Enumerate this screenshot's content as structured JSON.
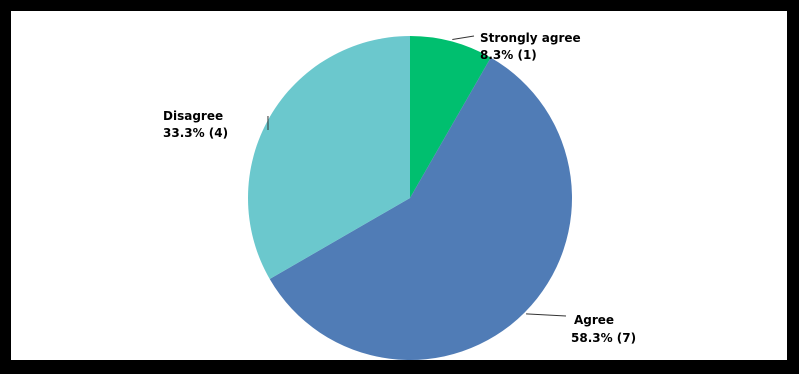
{
  "chart_data": {
    "type": "pie",
    "title": "",
    "slices": [
      {
        "label": "Strongly agree",
        "value_text": "8.3% (1)",
        "percent": 8.3,
        "count": 1,
        "color": "#00bf6f"
      },
      {
        "label": "Agree",
        "value_text": "58.3% (7)",
        "percent": 58.3,
        "count": 7,
        "color": "#507cb6"
      },
      {
        "label": "Disagree",
        "value_text": "33.3% (4)",
        "percent": 33.3,
        "count": 4,
        "color": "#6bc8cd"
      }
    ],
    "start_angle": "12 o'clock",
    "direction": "clockwise",
    "legend": "none"
  }
}
